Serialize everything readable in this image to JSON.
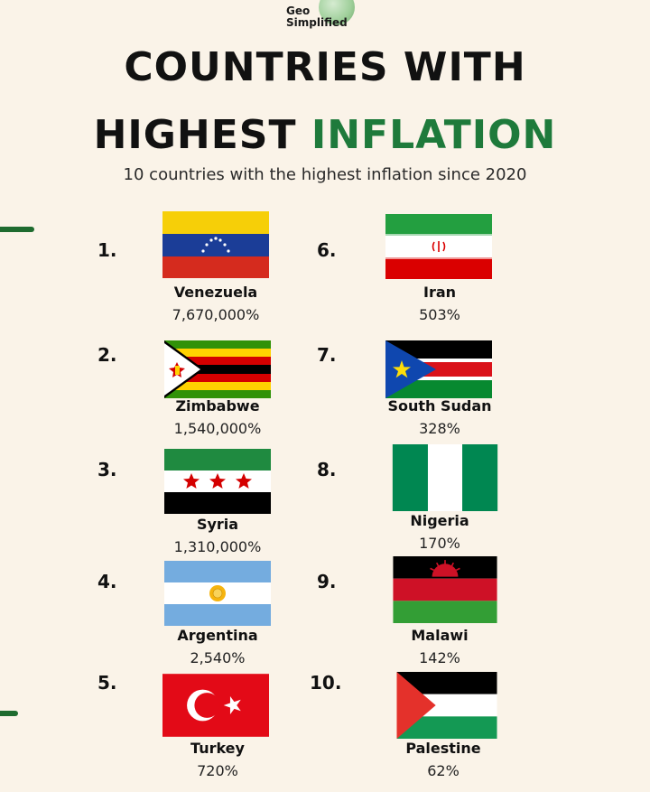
{
  "brand": {
    "line1": "Geo",
    "line2": "Simplified"
  },
  "title": {
    "line1": "COUNTRIES WITH",
    "line2_black": "HIGHEST ",
    "line2_green": "INFLATION"
  },
  "subtitle": "10 countries with the highest inflation since 2020",
  "countries": [
    {
      "rank": "1.",
      "name": "Venezuela",
      "inflation": "7,670,000%"
    },
    {
      "rank": "2.",
      "name": "Zimbabwe",
      "inflation": "1,540,000%"
    },
    {
      "rank": "3.",
      "name": "Syria",
      "inflation": "1,310,000%"
    },
    {
      "rank": "4.",
      "name": "Argentina",
      "inflation": "2,540%"
    },
    {
      "rank": "5.",
      "name": "Turkey",
      "inflation": "720%"
    },
    {
      "rank": "6.",
      "name": "Iran",
      "inflation": "503%"
    },
    {
      "rank": "7.",
      "name": "South Sudan",
      "inflation": "328%"
    },
    {
      "rank": "8.",
      "name": "Nigeria",
      "inflation": "170%"
    },
    {
      "rank": "9.",
      "name": "Malawi",
      "inflation": "142%"
    },
    {
      "rank": "10.",
      "name": "Palestine",
      "inflation": "62%"
    }
  ],
  "colors": {
    "background": "#faf3e8",
    "accent_green": "#1e7a3b"
  }
}
